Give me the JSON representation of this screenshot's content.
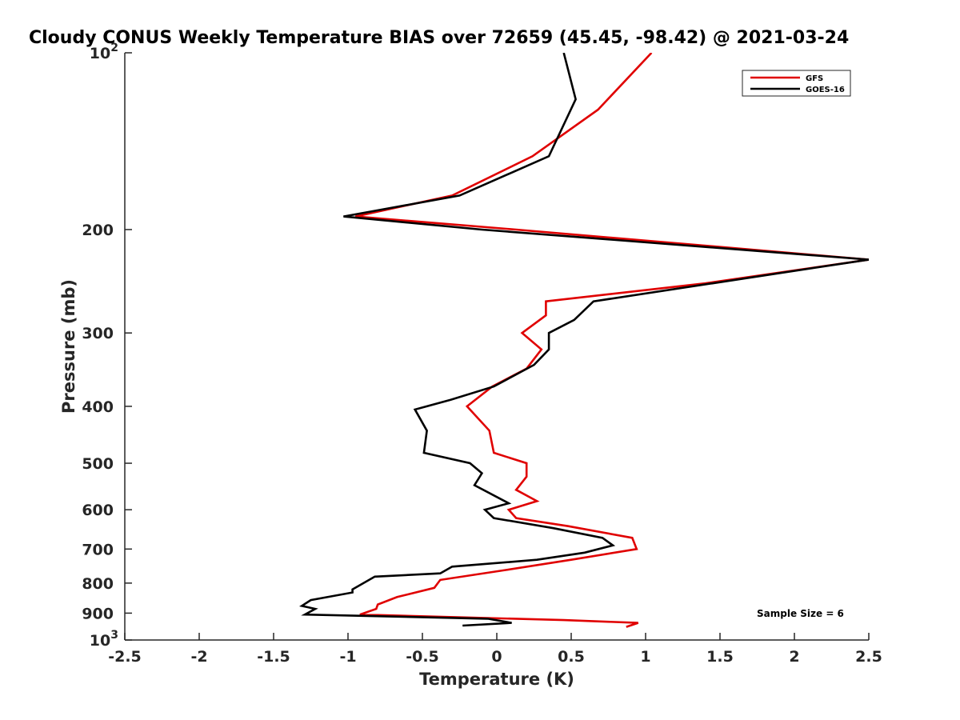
{
  "chart_data": {
    "type": "line",
    "title": "Cloudy CONUS Weekly Temperature BIAS over 72659 (45.45, -98.42) @ 2021-03-24",
    "xlabel": "Temperature (K)",
    "ylabel": "Pressure (mb)",
    "xlim": [
      -2.5,
      2.5
    ],
    "ylim": [
      100,
      1000
    ],
    "y_scale": "log",
    "y_reversed": true,
    "grid": false,
    "legend_position": "top-right",
    "x_ticks": [
      {
        "value": -2.5,
        "label": "-2.5"
      },
      {
        "value": -2,
        "label": "-2"
      },
      {
        "value": -1.5,
        "label": "-1.5"
      },
      {
        "value": -1,
        "label": "-1"
      },
      {
        "value": -0.5,
        "label": "-0.5"
      },
      {
        "value": 0,
        "label": "0"
      },
      {
        "value": 0.5,
        "label": "0.5"
      },
      {
        "value": 1,
        "label": "1"
      },
      {
        "value": 1.5,
        "label": "1.5"
      },
      {
        "value": 2,
        "label": "2"
      },
      {
        "value": 2.5,
        "label": "2.5"
      }
    ],
    "y_ticks": [
      {
        "value": 100,
        "base": "10",
        "exp": "2"
      },
      {
        "value": 200,
        "label": "200"
      },
      {
        "value": 300,
        "label": "300"
      },
      {
        "value": 400,
        "label": "400"
      },
      {
        "value": 500,
        "label": "500"
      },
      {
        "value": 600,
        "label": "600"
      },
      {
        "value": 700,
        "label": "700"
      },
      {
        "value": 800,
        "label": "800"
      },
      {
        "value": 900,
        "label": "900"
      },
      {
        "value": 1000,
        "base": "10",
        "exp": "3"
      }
    ],
    "annotation": "Sample Size = 6",
    "series": [
      {
        "name": "GFS",
        "color": "#e00000",
        "points": [
          [
            1.04,
            100
          ],
          [
            0.68,
            125
          ],
          [
            0.24,
            150
          ],
          [
            -0.3,
            175
          ],
          [
            -0.95,
            190
          ],
          [
            0.13,
            200
          ],
          [
            2.5,
            225
          ],
          [
            1.4,
            247
          ],
          [
            0.33,
            265
          ],
          [
            0.33,
            280
          ],
          [
            0.17,
            300
          ],
          [
            0.3,
            320
          ],
          [
            0.2,
            345
          ],
          [
            -0.03,
            370
          ],
          [
            -0.2,
            400
          ],
          [
            -0.05,
            440
          ],
          [
            -0.02,
            480
          ],
          [
            0.2,
            500
          ],
          [
            0.2,
            527
          ],
          [
            0.13,
            555
          ],
          [
            0.27,
            580
          ],
          [
            0.08,
            600
          ],
          [
            0.13,
            620
          ],
          [
            0.48,
            640
          ],
          [
            0.91,
            670
          ],
          [
            0.94,
            700
          ],
          [
            0.5,
            730
          ],
          [
            0.06,
            760
          ],
          [
            -0.38,
            790
          ],
          [
            -0.42,
            815
          ],
          [
            -0.67,
            845
          ],
          [
            -0.8,
            870
          ],
          [
            -0.81,
            885
          ],
          [
            -0.92,
            905
          ],
          [
            0.45,
            925
          ],
          [
            0.95,
            935
          ],
          [
            0.87,
            950
          ]
        ]
      },
      {
        "name": "GOES-16",
        "color": "#000000",
        "points": [
          [
            0.45,
            100
          ],
          [
            0.53,
            120
          ],
          [
            0.35,
            150
          ],
          [
            -0.25,
            175
          ],
          [
            -1.03,
            190
          ],
          [
            -0.1,
            200
          ],
          [
            2.5,
            225
          ],
          [
            0.65,
            265
          ],
          [
            0.52,
            285
          ],
          [
            0.35,
            300
          ],
          [
            0.35,
            320
          ],
          [
            0.25,
            340
          ],
          [
            -0.02,
            370
          ],
          [
            -0.31,
            390
          ],
          [
            -0.55,
            405
          ],
          [
            -0.47,
            440
          ],
          [
            -0.49,
            480
          ],
          [
            -0.18,
            500
          ],
          [
            -0.1,
            520
          ],
          [
            -0.15,
            545
          ],
          [
            0.08,
            585
          ],
          [
            -0.08,
            600
          ],
          [
            -0.02,
            620
          ],
          [
            0.38,
            645
          ],
          [
            0.71,
            670
          ],
          [
            0.78,
            690
          ],
          [
            0.59,
            710
          ],
          [
            0.27,
            730
          ],
          [
            -0.3,
            750
          ],
          [
            -0.38,
            770
          ],
          [
            -0.82,
            780
          ],
          [
            -0.97,
            820
          ],
          [
            -0.97,
            830
          ],
          [
            -1.25,
            855
          ],
          [
            -1.31,
            875
          ],
          [
            -1.22,
            885
          ],
          [
            -1.29,
            905
          ],
          [
            -0.06,
            920
          ],
          [
            0.1,
            935
          ],
          [
            -0.23,
            945
          ]
        ]
      }
    ]
  }
}
